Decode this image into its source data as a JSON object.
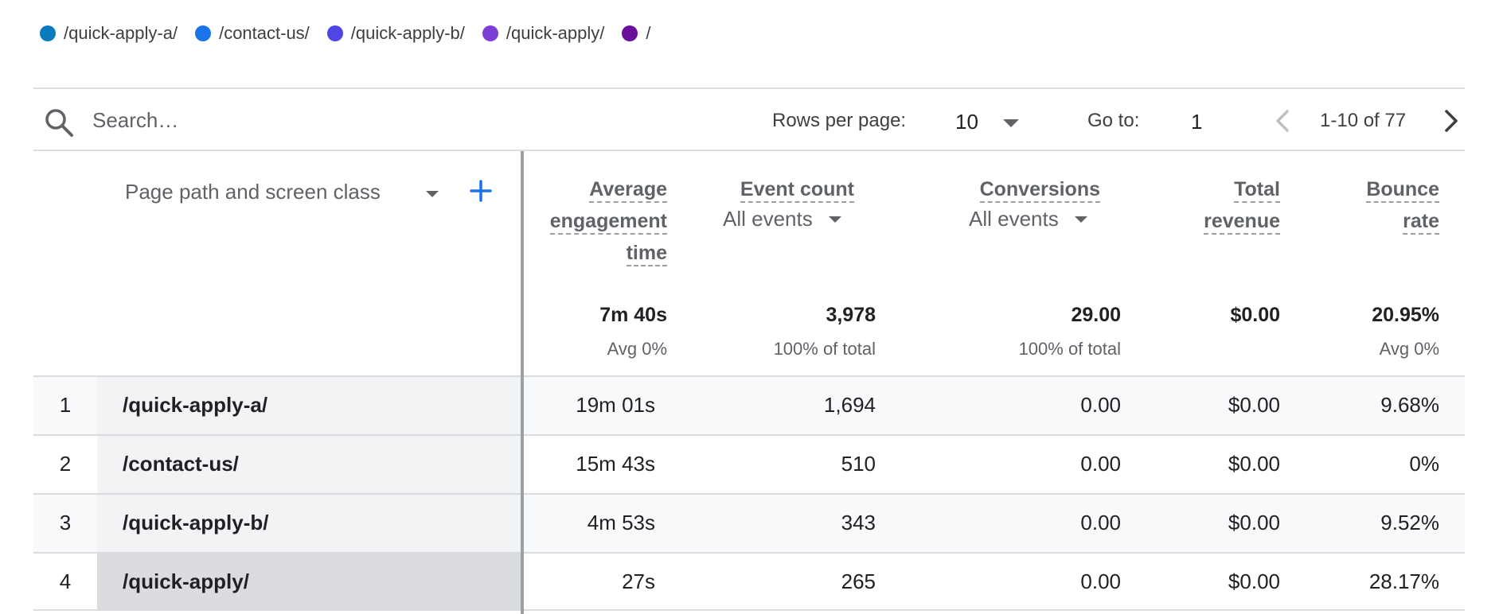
{
  "legend": [
    {
      "label": "/quick-apply-a/",
      "color": "#0b7bbf"
    },
    {
      "label": "/contact-us/",
      "color": "#1a73e8"
    },
    {
      "label": "/quick-apply-b/",
      "color": "#4f46e5"
    },
    {
      "label": "/quick-apply/",
      "color": "#7b3fd6"
    },
    {
      "label": "/",
      "color": "#6a0f9c"
    }
  ],
  "toolbar": {
    "search_placeholder": "Search…",
    "rows_per_page_label": "Rows per page:",
    "rows_per_page_value": "10",
    "goto_label": "Go to:",
    "goto_value": "1",
    "pagination_text": "1-10 of 77"
  },
  "table": {
    "dimension_header": "Page path and screen class",
    "columns": [
      {
        "header_lines": [
          "Average",
          "engagement",
          "time"
        ],
        "total": "7m 40s",
        "total_sub": "Avg 0%"
      },
      {
        "header_lines": [
          "Event count"
        ],
        "sub_selector": "All events",
        "total": "3,978",
        "total_sub": "100% of total"
      },
      {
        "header_lines": [
          "Conversions"
        ],
        "sub_selector": "All events",
        "total": "29.00",
        "total_sub": "100% of total"
      },
      {
        "header_lines": [
          "Total",
          "revenue"
        ],
        "total": "$0.00",
        "total_sub": ""
      },
      {
        "header_lines": [
          "Bounce",
          "rate"
        ],
        "total": "20.95%",
        "total_sub": "Avg 0%"
      }
    ],
    "rows": [
      {
        "num": "1",
        "path": "/quick-apply-a/",
        "cells": [
          "19m 01s",
          "1,694",
          "0.00",
          "$0.00",
          "9.68%"
        ]
      },
      {
        "num": "2",
        "path": "/contact-us/",
        "cells": [
          "15m 43s",
          "510",
          "0.00",
          "$0.00",
          "0%"
        ]
      },
      {
        "num": "3",
        "path": "/quick-apply-b/",
        "cells": [
          "4m 53s",
          "343",
          "0.00",
          "$0.00",
          "9.52%"
        ]
      },
      {
        "num": "4",
        "path": "/quick-apply/",
        "cells": [
          "27s",
          "265",
          "0.00",
          "$0.00",
          "28.17%"
        ]
      }
    ]
  },
  "icons": {
    "search": "search-icon",
    "add_dimension": "plus-icon",
    "prev_page": "chevron-left-icon",
    "next_page": "chevron-right-icon"
  }
}
